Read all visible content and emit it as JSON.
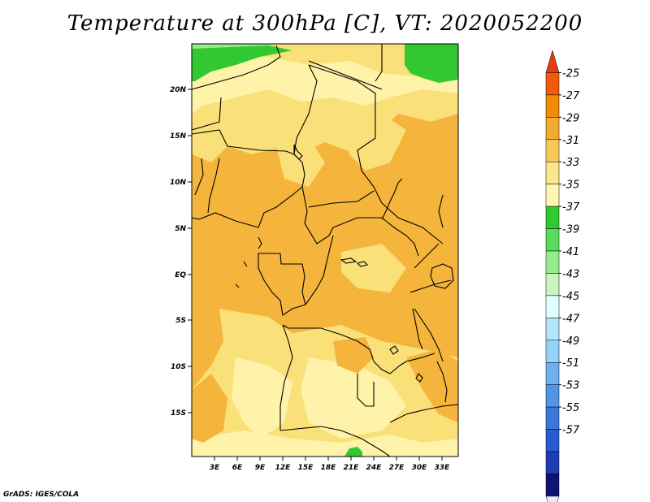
{
  "title": "Temperature at 300hPa [C], VT: 2020052200",
  "credit": "GrADS: IGES/COLA",
  "map": {
    "lat_labels": [
      "20N",
      "15N",
      "10N",
      "5N",
      "EQ",
      "5S",
      "10S",
      "15S"
    ],
    "lon_labels": [
      "3E",
      "6E",
      "9E",
      "12E",
      "15E",
      "18E",
      "21E",
      "24E",
      "27E",
      "30E",
      "33E"
    ]
  },
  "colorbar": {
    "levels": [
      "-25",
      "-27",
      "-29",
      "-31",
      "-33",
      "-35",
      "-37",
      "-39",
      "-41",
      "-43",
      "-45",
      "-47",
      "-49",
      "-51",
      "-53",
      "-55",
      "-57"
    ],
    "colors": [
      "#e8e8ff",
      "#0d1473",
      "#1e3cb4",
      "#2a5ad2",
      "#3c78dc",
      "#5096e6",
      "#6eaff0",
      "#96d2fa",
      "#b4e6fa",
      "#e1ffff",
      "#c8f5c0",
      "#96eb8c",
      "#5adc5a",
      "#32c832",
      "#fff5b4",
      "#fae68c",
      "#f5c85a",
      "#f5aa32",
      "#f08c0a",
      "#f05a0a",
      "#e63c14"
    ]
  },
  "colors": {
    "t31_29": "#f5b43c",
    "t33_31": "#fae078",
    "t35_33": "#fff3aa",
    "t37_35": "#32c832",
    "t39_37": "#5adc5a",
    "t41_39": "#96eb8c"
  }
}
